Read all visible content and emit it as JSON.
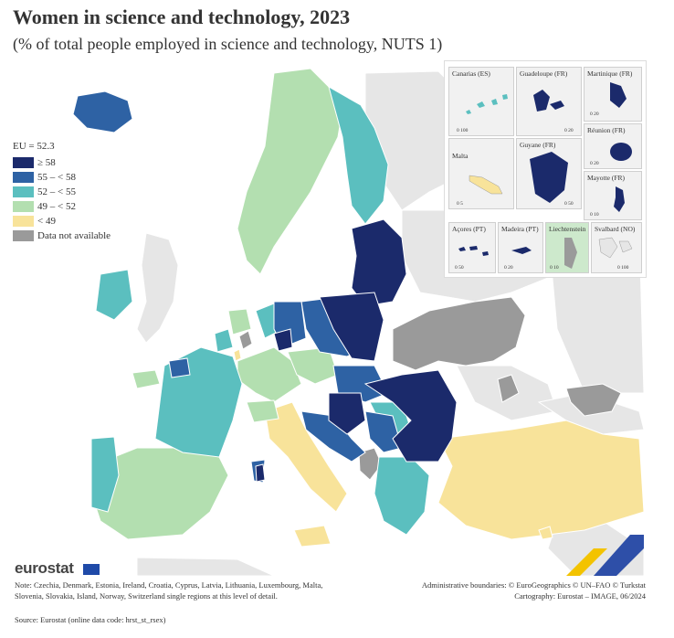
{
  "title": "Women in science and technology, 2023",
  "subtitle": "(% of total people employed in science and technology, NUTS 1)",
  "legend": {
    "eu_label": "EU = 52.3",
    "classes": [
      {
        "label": "≥ 58",
        "color": "#1b2a6b"
      },
      {
        "label": "55 – < 58",
        "color": "#2e62a4"
      },
      {
        "label": "52 – < 55",
        "color": "#5bbfbf"
      },
      {
        "label": "49 – < 52",
        "color": "#b3dfb0"
      },
      {
        "label": "< 49",
        "color": "#f8e39a"
      },
      {
        "label": "Data not available",
        "color": "#9a9a9a"
      }
    ]
  },
  "insets": {
    "canarias": "Canarias (ES)",
    "guadeloupe": "Guadeloupe (FR)",
    "martinique": "Martinique (FR)",
    "reunion": "Réunion (FR)",
    "malta": "Malta",
    "guyane": "Guyane (FR)",
    "mayotte": "Mayotte (FR)",
    "acores": "Açores (PT)",
    "madeira": "Madeira (PT)",
    "liechtenstein": "Liechtenstein",
    "svalbard": "Svalbard (NO)",
    "scale_100": "0  100",
    "scale_20": "0  20",
    "scale_10": "0  10",
    "scale_50": "0  50",
    "scale_5": "0  5"
  },
  "branding": "eurostat",
  "note": "Note: Czechia, Denmark, Estonia, Ireland, Croatia, Cyprus, Latvia, Lithuania, Luxembourg, Malta, Slovenia, Slovakia, Island, Norway, Switzerland single regions at this level of detail.",
  "source": "Source: Eurostat (online data code: hrst_st_rsex)",
  "credits": {
    "boundaries": "Administrative boundaries: © EuroGeographics © UN–FAO © Turkstat",
    "cartography": "Cartography: Eurostat – IMAGE, 06/2024"
  },
  "colors": {
    "c58": "#1b2a6b",
    "c55": "#2e62a4",
    "c52": "#5bbfbf",
    "c49": "#b3dfb0",
    "clow": "#f8e39a",
    "na": "#9a9a9a",
    "nonEU": "#e6e6e6",
    "sea": "#ffffff"
  }
}
